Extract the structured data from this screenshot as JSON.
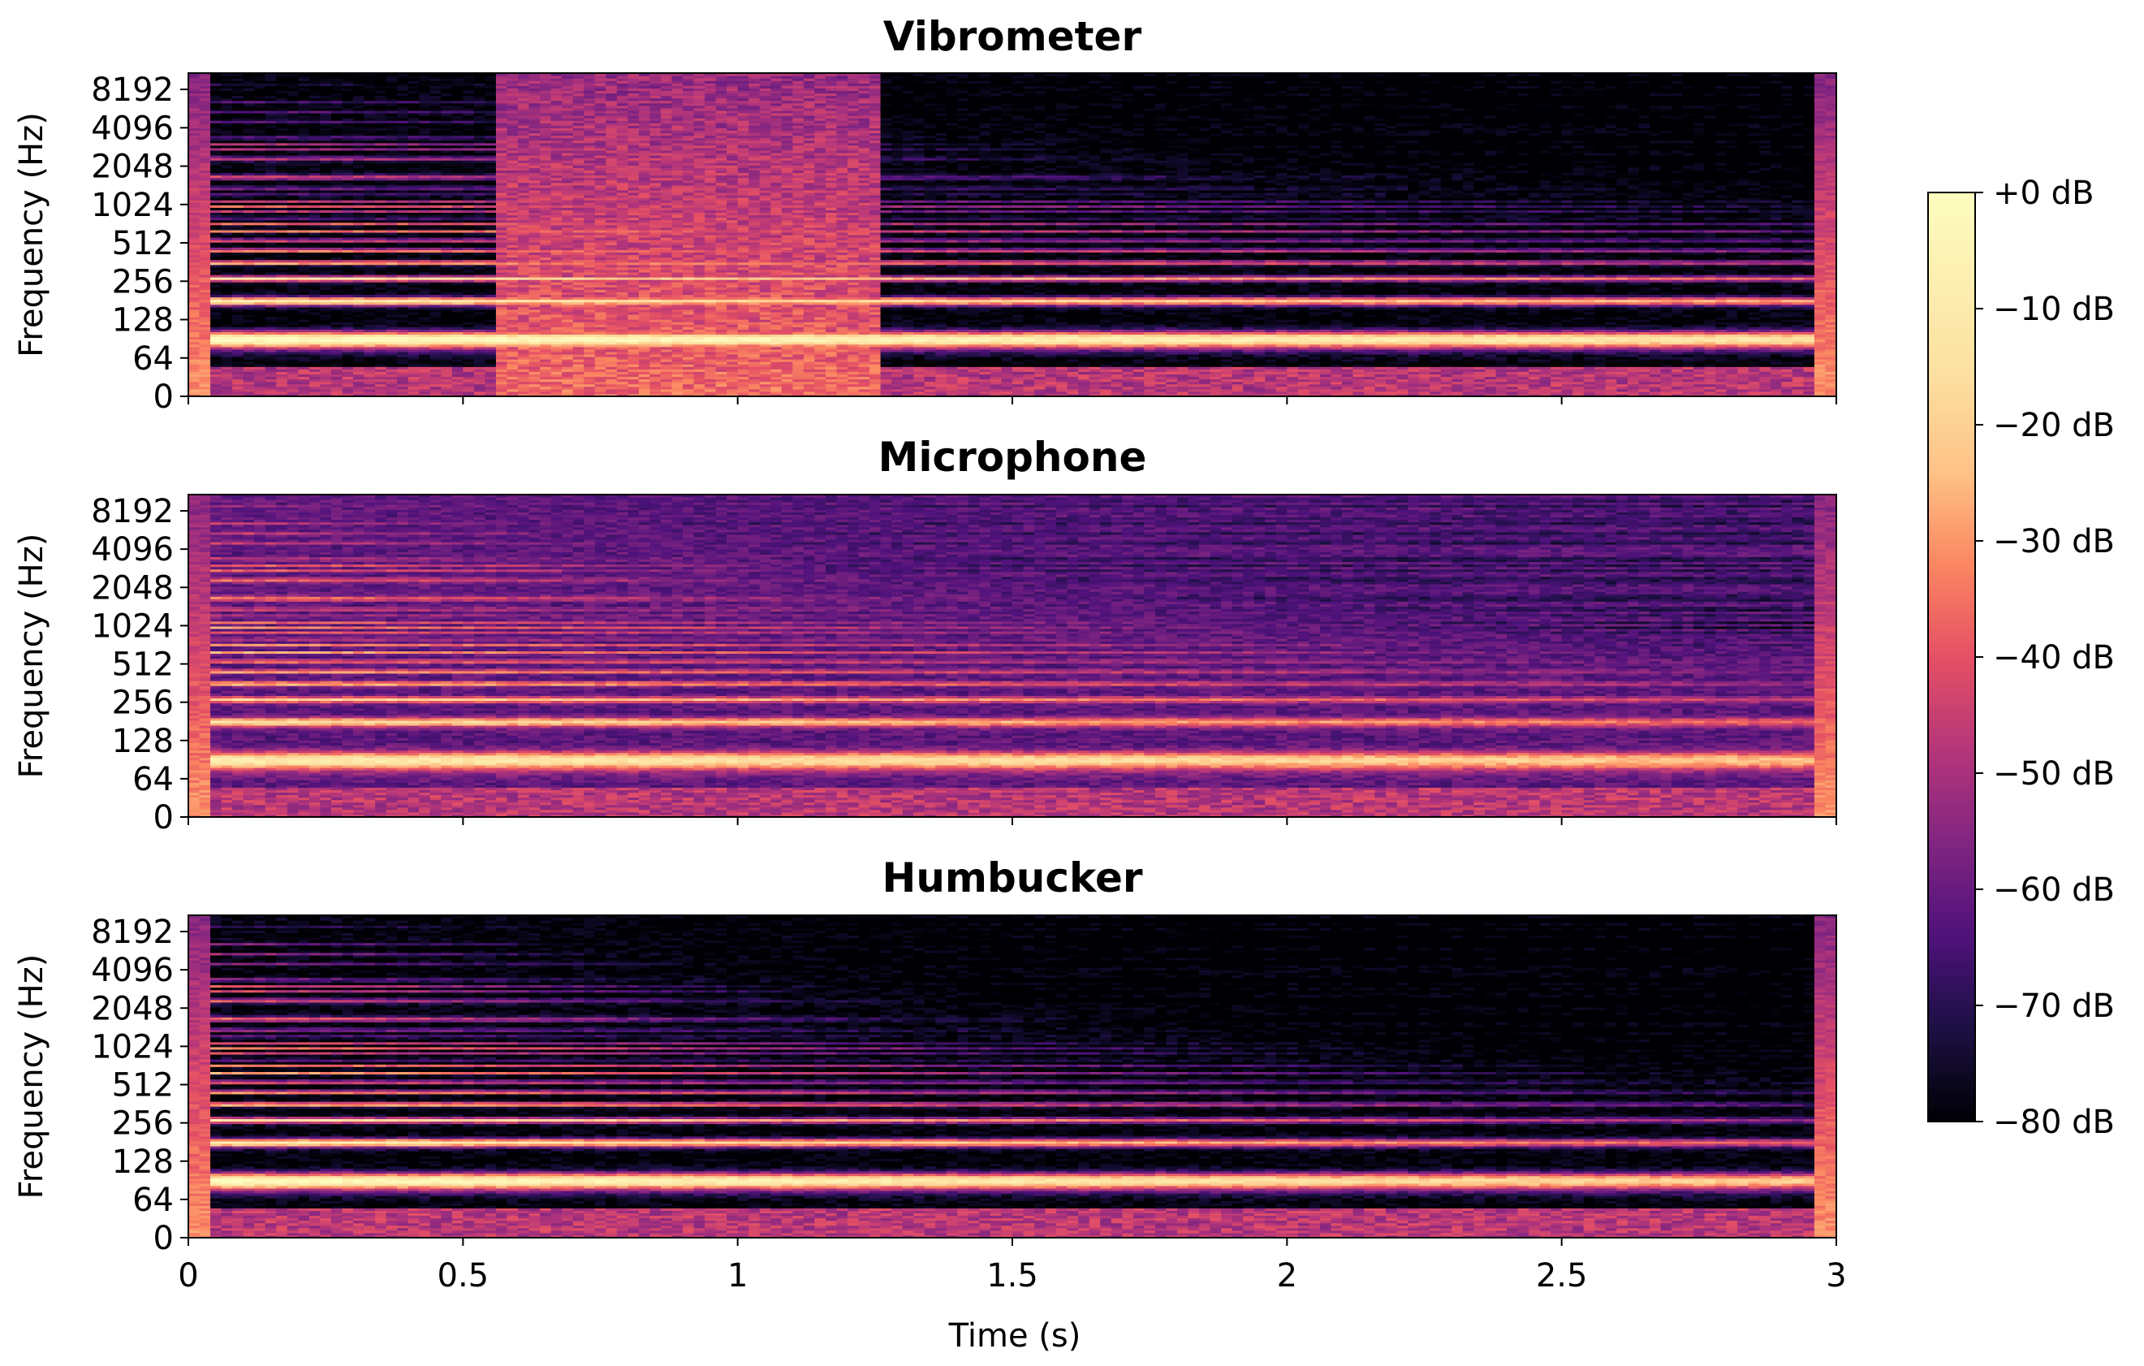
{
  "chart_data": {
    "type": "heatmap",
    "subtype": "spectrogram",
    "shared_x": true,
    "xlabel": "Time (s)",
    "xlim": [
      0,
      3
    ],
    "x_ticks": [
      0,
      0.5,
      1,
      1.5,
      2,
      2.5,
      3
    ],
    "x_tick_labels": [
      "0",
      "0.5",
      "1",
      "1.5",
      "2",
      "2.5",
      "3"
    ],
    "ylabel": "Frequency (Hz)",
    "y_scale": "log2",
    "y_ticks": [
      0,
      64,
      128,
      256,
      512,
      1024,
      2048,
      4096,
      8192
    ],
    "y_tick_labels": [
      "0",
      "64",
      "128",
      "256",
      "512",
      "1024",
      "2048",
      "4096",
      "8192"
    ],
    "colormap": "magma",
    "colorbar": {
      "range_db": [
        -80,
        0
      ],
      "ticks": [
        0,
        -10,
        -20,
        -30,
        -40,
        -50,
        -60,
        -70,
        -80
      ],
      "tick_labels": [
        "+0 dB",
        "−10 dB",
        "−20 dB",
        "−30 dB",
        "−40 dB",
        "−50 dB",
        "−60 dB",
        "−70 dB",
        "−80 dB"
      ]
    },
    "panels": [
      {
        "title": "Vibrometer",
        "fundamental_hz": 90,
        "peak_db": 0,
        "decay_db_per_s": 4,
        "rolloff_db_per_octave": 9,
        "noise_floor_db": -80,
        "broadband_burst": {
          "t_start": 0.55,
          "t_end": 1.27,
          "level_db": -45
        },
        "onset_end_s": 0.04,
        "release_start_s": 2.96
      },
      {
        "title": "Microphone",
        "fundamental_hz": 90,
        "peak_db": -8,
        "decay_db_per_s": 5,
        "rolloff_db_per_octave": 5,
        "noise_floor_db": -62,
        "broadband_burst": null,
        "onset_end_s": 0.04,
        "release_start_s": 2.96
      },
      {
        "title": "Humbucker",
        "fundamental_hz": 90,
        "peak_db": 0,
        "decay_db_per_s": 7,
        "rolloff_db_per_octave": 7,
        "noise_floor_db": -80,
        "broadband_burst": null,
        "onset_end_s": 0.04,
        "release_start_s": 2.96
      }
    ]
  }
}
